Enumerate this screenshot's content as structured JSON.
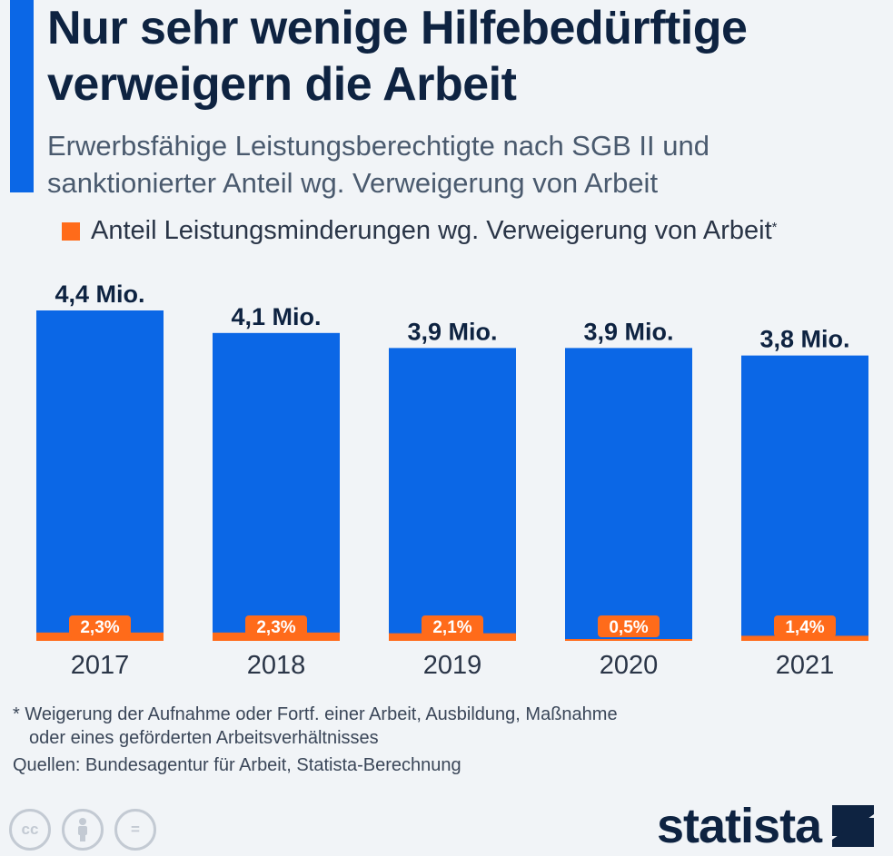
{
  "header": {
    "title_line1": "Nur sehr wenige Hilfebedürftige",
    "title_line2": "verweigern die Arbeit",
    "subtitle_line1": "Erwerbsfähige Leistungsberechtigte nach SGB II und",
    "subtitle_line2": "sanktionierter Anteil wg. Verweigerung von Arbeit"
  },
  "legend": {
    "label": "Anteil Leistungsminderungen wg. Verweigerung von Arbeit",
    "marker": "*"
  },
  "colors": {
    "bar": "#0b67e6",
    "share": "#ff6b1a",
    "text": "#0e2341"
  },
  "chart_data": {
    "type": "bar",
    "title": "Nur sehr wenige Hilfebedürftige verweigern die Arbeit",
    "categories": [
      "2017",
      "2018",
      "2019",
      "2020",
      "2021"
    ],
    "series": [
      {
        "name": "Erwerbsfähige Leistungsberechtigte (Mio.)",
        "values": [
          4.4,
          4.1,
          3.9,
          3.9,
          3.8
        ],
        "labels": [
          "4,4 Mio.",
          "4,1 Mio.",
          "3,9 Mio.",
          "3,9 Mio.",
          "3,8 Mio."
        ]
      },
      {
        "name": "Anteil Leistungsminderungen wg. Verweigerung von Arbeit (%)",
        "values": [
          2.3,
          2.3,
          2.1,
          0.5,
          1.4
        ],
        "labels": [
          "2,3%",
          "2,3%",
          "2,1%",
          "0,5%",
          "1,4%"
        ]
      }
    ],
    "xlabel": "",
    "ylabel": "",
    "ylim": [
      0,
      4.4
    ]
  },
  "footnote": {
    "line1": "* Weigerung der Aufnahme oder Fortf. einer Arbeit, Ausbildung, Maßnahme",
    "line2": "oder eines geförderten Arbeitsverhältnisses"
  },
  "source": "Quellen: Bundesagentur für Arbeit, Statista-Berechnung",
  "license_icons": [
    "cc-icon",
    "by-person-icon",
    "nd-equals-icon"
  ],
  "license_labels": [
    "cc",
    "",
    "="
  ],
  "brand": "statista"
}
